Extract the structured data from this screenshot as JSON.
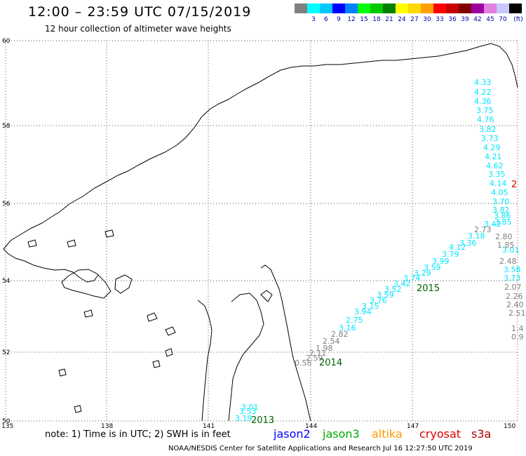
{
  "header": {
    "title": "12:00 – 23:59 UTC 07/15/2019",
    "subtitle": "12 hour collection of altimeter wave heights"
  },
  "colorbar": {
    "unit": "(ft)",
    "swatches": [
      {
        "color": "#808080",
        "label": ""
      },
      {
        "color": "#00ffff",
        "label": "3"
      },
      {
        "color": "#00c8ff",
        "label": "6"
      },
      {
        "color": "#0000ff",
        "label": "9"
      },
      {
        "color": "#0080ff",
        "label": "12"
      },
      {
        "color": "#00ff00",
        "label": "15"
      },
      {
        "color": "#00c800",
        "label": "18"
      },
      {
        "color": "#008000",
        "label": "21"
      },
      {
        "color": "#ffff00",
        "label": "24"
      },
      {
        "color": "#ffd700",
        "label": "27"
      },
      {
        "color": "#ffa000",
        "label": "30"
      },
      {
        "color": "#ff0000",
        "label": "33"
      },
      {
        "color": "#c80000",
        "label": "36"
      },
      {
        "color": "#800000",
        "label": "39"
      },
      {
        "color": "#a000a0",
        "label": "42"
      },
      {
        "color": "#e080e0",
        "label": "45"
      },
      {
        "color": "#c8c8ff",
        "label": "70"
      },
      {
        "color": "#000000",
        "label": ""
      }
    ]
  },
  "axes": {
    "lat_labels": [
      "60",
      "58",
      "56",
      "54",
      "52",
      "50"
    ],
    "lon_labels": [
      "135",
      "138",
      "141",
      "144",
      "147",
      "150"
    ]
  },
  "tracks": [
    {
      "color": "#00e5ff",
      "values": [
        "4.33",
        "4.22",
        "4.36",
        "3.75",
        "4.76",
        "3.82",
        "3.73",
        "4.29",
        "4.21",
        "4.62",
        "3.35",
        "4.14",
        "4.05",
        "3.70",
        "3.82",
        "3.86",
        "3.85",
        "3.42",
        "3.18",
        "3.36",
        "4.12",
        "3.79",
        "3.99",
        "3.59",
        "3.29",
        "3.74",
        "3.42",
        "3.52",
        "3.59",
        "3.76",
        "3.15",
        "3.94",
        "2.75",
        "3.16",
        "3.01",
        "3.53",
        "3.19",
        "3.01",
        "3.58",
        "3.73"
      ]
    },
    {
      "color": "#808080",
      "values": [
        "2.73",
        "2.80",
        "1.85",
        "2.48",
        "2.07",
        "2.26",
        "2.40",
        "2.51",
        "1.4",
        "0.9",
        "2.82",
        "2.54",
        "1.98",
        "2.11",
        "2.59",
        "0.58"
      ]
    }
  ],
  "pass_labels": [
    {
      "text": "2015",
      "color": "#006400"
    },
    {
      "text": "2014",
      "color": "#006400"
    },
    {
      "text": "2013",
      "color": "#006400"
    },
    {
      "text": "2",
      "color": "#e00000"
    }
  ],
  "footer": {
    "note": "note: 1) Time is in UTC; 2) SWH is in feet",
    "satellites": [
      {
        "name": "jason2",
        "color": "#0000ff"
      },
      {
        "name": "jason3",
        "color": "#00aa00"
      },
      {
        "name": "altika",
        "color": "#ff9900"
      },
      {
        "name": "cryosat",
        "color": "#dd0000"
      },
      {
        "name": "s3a",
        "color": "#aa0000"
      }
    ],
    "credit": "NOAA/NESDIS Center for Satellite Applications and Research    Jul 16 12:27:50 UTC 2019"
  }
}
